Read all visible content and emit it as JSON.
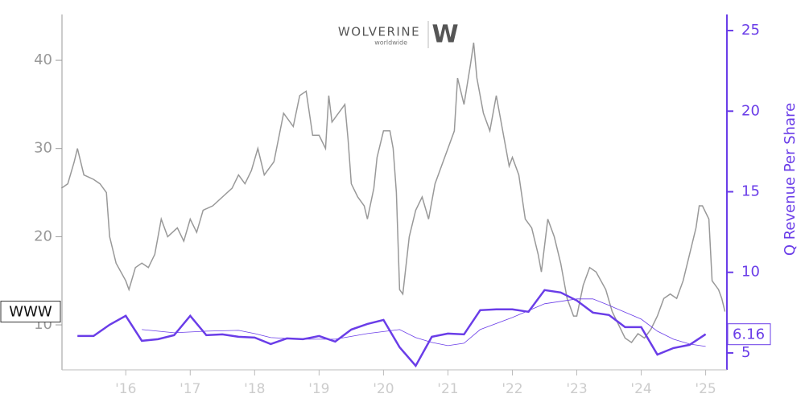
{
  "chart_data": {
    "type": "line",
    "logo": {
      "name": "WOLVERINE",
      "tagline": "worldwide",
      "mark": "W"
    },
    "y2label": "Q Revenue Per Share",
    "xlim": [
      2015.01,
      2025.33
    ],
    "xticks": [
      {
        "value": 2016,
        "label": "'16"
      },
      {
        "value": 2017,
        "label": "'17"
      },
      {
        "value": 2018,
        "label": "'18"
      },
      {
        "value": 2019,
        "label": "'19"
      },
      {
        "value": 2020,
        "label": "'20"
      },
      {
        "value": 2021,
        "label": "'21"
      },
      {
        "value": 2022,
        "label": "'22"
      },
      {
        "value": 2023,
        "label": "'23"
      },
      {
        "value": 2024,
        "label": "'24"
      },
      {
        "value": 2025,
        "label": "'25"
      }
    ],
    "ylim": [
      4.9,
      45.2
    ],
    "yticks": [
      10,
      20,
      30,
      40
    ],
    "y2lim": [
      3.95,
      26
    ],
    "y2ticks": [
      5,
      10,
      15,
      20,
      25
    ],
    "series": [
      {
        "name": "WWW",
        "color": "#999999",
        "x": [
          2015.0,
          2015.1,
          2015.2,
          2015.25,
          2015.35,
          2015.5,
          2015.6,
          2015.7,
          2015.75,
          2015.85,
          2016.0,
          2016.05,
          2016.15,
          2016.25,
          2016.35,
          2016.45,
          2016.55,
          2016.65,
          2016.8,
          2016.9,
          2017.0,
          2017.1,
          2017.2,
          2017.35,
          2017.5,
          2017.65,
          2017.75,
          2017.85,
          2017.95,
          2018.05,
          2018.15,
          2018.3,
          2018.45,
          2018.6,
          2018.7,
          2018.8,
          2018.9,
          2019.0,
          2019.1,
          2019.15,
          2019.2,
          2019.3,
          2019.4,
          2019.45,
          2019.5,
          2019.6,
          2019.7,
          2019.75,
          2019.85,
          2019.9,
          2020.0,
          2020.1,
          2020.15,
          2020.2,
          2020.25,
          2020.3,
          2020.4,
          2020.5,
          2020.6,
          2020.7,
          2020.8,
          2020.9,
          2021.0,
          2021.1,
          2021.15,
          2021.25,
          2021.35,
          2021.4,
          2021.45,
          2021.55,
          2021.65,
          2021.75,
          2021.85,
          2021.95,
          2022.0,
          2022.1,
          2022.2,
          2022.3,
          2022.4,
          2022.45,
          2022.55,
          2022.65,
          2022.75,
          2022.85,
          2022.95,
          2023.0,
          2023.1,
          2023.2,
          2023.3,
          2023.45,
          2023.55,
          2023.65,
          2023.75,
          2023.85,
          2023.95,
          2024.05,
          2024.15,
          2024.25,
          2024.35,
          2024.45,
          2024.55,
          2024.65,
          2024.75,
          2024.85,
          2024.9,
          2024.95,
          2025.05,
          2025.1,
          2025.2,
          2025.25,
          2025.3
        ],
        "values": [
          25.5,
          26,
          28.5,
          30,
          27,
          26.5,
          26,
          25,
          20,
          17,
          15,
          14,
          16.5,
          17,
          16.5,
          18,
          22,
          20,
          21,
          19.5,
          22,
          20.5,
          23,
          23.5,
          24.5,
          25.5,
          27,
          26,
          27.5,
          30,
          27,
          28.5,
          34,
          32.5,
          36,
          36.5,
          31.5,
          31.5,
          30,
          36,
          33,
          34,
          35,
          31,
          26,
          24.5,
          23.5,
          22,
          25.5,
          29,
          32,
          32,
          30,
          25,
          14,
          13.5,
          20,
          23,
          24.5,
          22,
          26,
          28,
          30,
          32,
          38,
          35,
          39.5,
          42,
          38,
          34,
          32,
          36,
          32,
          28,
          29,
          27,
          22,
          21,
          18,
          16,
          22,
          20,
          17,
          13,
          11,
          11,
          14.5,
          16.5,
          16,
          14,
          11.5,
          10,
          8.5,
          8,
          9,
          8.5,
          9.5,
          11,
          13,
          13.5,
          13,
          15,
          18,
          21,
          23.5,
          23.5,
          22,
          15,
          14,
          13,
          11.5
        ]
      },
      {
        "color": "#6a3de8",
        "axis": "y2",
        "x": [
          2015.25,
          2015.5,
          2015.75,
          2016.0,
          2016.25,
          2016.5,
          2016.75,
          2017.0,
          2017.25,
          2017.5,
          2017.75,
          2018.0,
          2018.25,
          2018.5,
          2018.75,
          2019.0,
          2019.25,
          2019.5,
          2019.75,
          2020.0,
          2020.25,
          2020.5,
          2020.75,
          2021.0,
          2021.25,
          2021.5,
          2021.75,
          2022.0,
          2022.25,
          2022.5,
          2022.75,
          2023.0,
          2023.25,
          2023.5,
          2023.75,
          2024.0,
          2024.25,
          2024.5,
          2024.75,
          2025.0
        ],
        "values": [
          6.05,
          6.05,
          6.75,
          7.3,
          5.75,
          5.85,
          6.1,
          7.3,
          6.1,
          6.15,
          6.0,
          5.95,
          5.55,
          5.9,
          5.85,
          6.05,
          5.7,
          6.45,
          6.8,
          7.05,
          5.35,
          4.2,
          6.0,
          6.2,
          6.15,
          7.65,
          7.7,
          7.7,
          7.55,
          8.9,
          8.75,
          8.25,
          7.5,
          7.35,
          6.6,
          6.6,
          4.9,
          5.3,
          5.5,
          6.16
        ]
      },
      {
        "color": "#6a3de8",
        "axis": "y2",
        "x": [
          2016.25,
          2016.75,
          2017.25,
          2017.75,
          2018.0,
          2018.25,
          2018.75,
          2019.25,
          2019.75,
          2020.25,
          2020.5,
          2020.75,
          2021.0,
          2021.25,
          2021.5,
          2022.0,
          2022.5,
          2023.0,
          2023.25,
          2023.5,
          2024.0,
          2024.25,
          2024.5,
          2024.75,
          2025.0
        ],
        "values": [
          6.45,
          6.25,
          6.35,
          6.4,
          6.2,
          5.95,
          5.85,
          5.85,
          6.2,
          6.45,
          5.95,
          5.65,
          5.45,
          5.6,
          6.45,
          7.2,
          8.05,
          8.35,
          8.35,
          7.95,
          7.1,
          6.35,
          5.85,
          5.55,
          5.4
        ]
      }
    ]
  }
}
